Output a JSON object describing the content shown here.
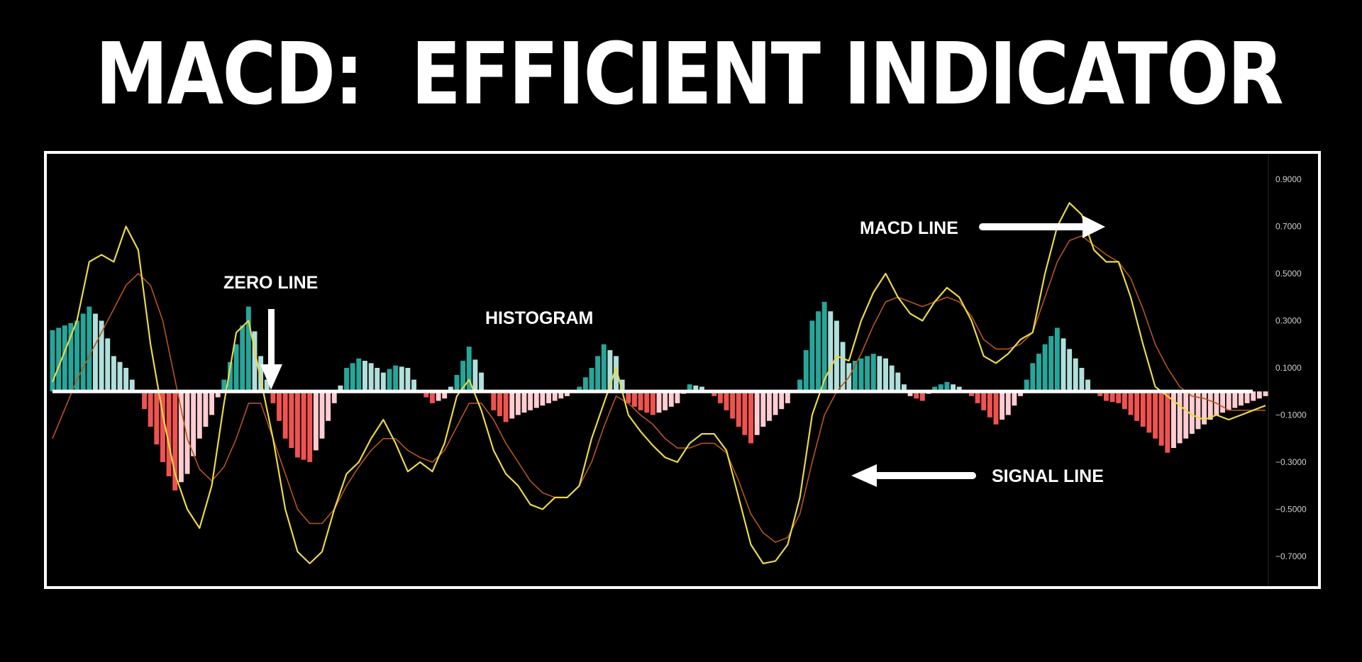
{
  "title": "MACD:  EFFICIENT INDICATOR",
  "annotations": {
    "zero_line": "ZERO LINE",
    "histogram": "HISTOGRAM",
    "macd_line": "MACD LINE",
    "signal_line": "SIGNAL LINE"
  },
  "colors": {
    "background": "#000000",
    "frame": "#ffffff",
    "macd_line": "#e8d84a",
    "signal_line": "#b4561e",
    "hist_pos_strong": "#26a69a",
    "hist_pos_weak": "#b2dfdb",
    "hist_neg_strong": "#ef5350",
    "hist_neg_weak": "#ffcdd2",
    "zero_line": "#ffffff"
  },
  "chart_data": {
    "type": "line",
    "ylim": [
      -0.78,
      0.95
    ],
    "y_ticks": [
      "0.9000",
      "0.7000",
      "0.5000",
      "0.3000",
      "0.1000",
      "−0.1000",
      "−0.3000",
      "−0.5000",
      "−0.7000"
    ],
    "y_tick_values": [
      0.9,
      0.7,
      0.5,
      0.3,
      0.1,
      -0.1,
      -0.3,
      -0.5,
      -0.7
    ],
    "zero_value": 0.0,
    "x_count": 100,
    "macd_anchors": [
      [
        0,
        0.04
      ],
      [
        2,
        0.3
      ],
      [
        3,
        0.55
      ],
      [
        4,
        0.58
      ],
      [
        5,
        0.55
      ],
      [
        6,
        0.7
      ],
      [
        7,
        0.6
      ],
      [
        8,
        0.2
      ],
      [
        9,
        -0.1
      ],
      [
        10,
        -0.35
      ],
      [
        11,
        -0.5
      ],
      [
        12,
        -0.58
      ],
      [
        13,
        -0.4
      ],
      [
        14,
        -0.05
      ],
      [
        15,
        0.25
      ],
      [
        16,
        0.3
      ],
      [
        17,
        0.05
      ],
      [
        18,
        -0.2
      ],
      [
        19,
        -0.5
      ],
      [
        20,
        -0.68
      ],
      [
        21,
        -0.73
      ],
      [
        22,
        -0.68
      ],
      [
        23,
        -0.5
      ],
      [
        24,
        -0.35
      ],
      [
        25,
        -0.3
      ],
      [
        26,
        -0.2
      ],
      [
        27,
        -0.12
      ],
      [
        28,
        -0.22
      ],
      [
        29,
        -0.34
      ],
      [
        30,
        -0.3
      ],
      [
        31,
        -0.34
      ],
      [
        32,
        -0.22
      ],
      [
        33,
        -0.02
      ],
      [
        34,
        0.05
      ],
      [
        35,
        -0.08
      ],
      [
        36,
        -0.25
      ],
      [
        37,
        -0.35
      ],
      [
        38,
        -0.4
      ],
      [
        39,
        -0.48
      ],
      [
        40,
        -0.5
      ],
      [
        41,
        -0.45
      ],
      [
        42,
        -0.45
      ],
      [
        43,
        -0.4
      ],
      [
        44,
        -0.2
      ],
      [
        45,
        -0.05
      ],
      [
        46,
        0.1
      ],
      [
        47,
        -0.1
      ],
      [
        48,
        -0.17
      ],
      [
        49,
        -0.23
      ],
      [
        50,
        -0.28
      ],
      [
        51,
        -0.3
      ],
      [
        52,
        -0.22
      ],
      [
        53,
        -0.18
      ],
      [
        54,
        -0.18
      ],
      [
        55,
        -0.25
      ],
      [
        56,
        -0.45
      ],
      [
        57,
        -0.65
      ],
      [
        58,
        -0.73
      ],
      [
        59,
        -0.72
      ],
      [
        60,
        -0.65
      ],
      [
        61,
        -0.45
      ],
      [
        62,
        -0.1
      ],
      [
        63,
        0.05
      ],
      [
        64,
        0.15
      ],
      [
        65,
        0.13
      ],
      [
        66,
        0.3
      ],
      [
        67,
        0.42
      ],
      [
        68,
        0.5
      ],
      [
        69,
        0.4
      ],
      [
        70,
        0.33
      ],
      [
        71,
        0.3
      ],
      [
        72,
        0.38
      ],
      [
        73,
        0.44
      ],
      [
        74,
        0.4
      ],
      [
        75,
        0.3
      ],
      [
        76,
        0.15
      ],
      [
        77,
        0.12
      ],
      [
        78,
        0.16
      ],
      [
        79,
        0.22
      ],
      [
        80,
        0.25
      ],
      [
        81,
        0.5
      ],
      [
        82,
        0.7
      ],
      [
        83,
        0.8
      ],
      [
        84,
        0.75
      ],
      [
        85,
        0.6
      ],
      [
        86,
        0.55
      ],
      [
        87,
        0.55
      ],
      [
        88,
        0.4
      ],
      [
        89,
        0.2
      ],
      [
        90,
        0.02
      ],
      [
        91,
        -0.02
      ],
      [
        92,
        -0.06
      ],
      [
        93,
        -0.1
      ],
      [
        94,
        -0.12
      ],
      [
        95,
        -0.1
      ],
      [
        96,
        -0.12
      ],
      [
        97,
        -0.1
      ],
      [
        98,
        -0.08
      ],
      [
        99,
        -0.06
      ]
    ],
    "signal_anchors": [
      [
        0,
        -0.2
      ],
      [
        2,
        0.05
      ],
      [
        4,
        0.25
      ],
      [
        6,
        0.45
      ],
      [
        7,
        0.5
      ],
      [
        8,
        0.45
      ],
      [
        9,
        0.3
      ],
      [
        10,
        0.05
      ],
      [
        11,
        -0.2
      ],
      [
        12,
        -0.33
      ],
      [
        13,
        -0.38
      ],
      [
        14,
        -0.32
      ],
      [
        15,
        -0.2
      ],
      [
        16,
        -0.05
      ],
      [
        17,
        -0.05
      ],
      [
        18,
        -0.2
      ],
      [
        19,
        -0.35
      ],
      [
        20,
        -0.5
      ],
      [
        21,
        -0.56
      ],
      [
        22,
        -0.56
      ],
      [
        23,
        -0.5
      ],
      [
        24,
        -0.4
      ],
      [
        25,
        -0.32
      ],
      [
        26,
        -0.25
      ],
      [
        27,
        -0.2
      ],
      [
        28,
        -0.2
      ],
      [
        29,
        -0.25
      ],
      [
        30,
        -0.28
      ],
      [
        31,
        -0.3
      ],
      [
        32,
        -0.25
      ],
      [
        33,
        -0.15
      ],
      [
        34,
        -0.05
      ],
      [
        35,
        -0.05
      ],
      [
        36,
        -0.12
      ],
      [
        37,
        -0.22
      ],
      [
        38,
        -0.3
      ],
      [
        39,
        -0.38
      ],
      [
        40,
        -0.43
      ],
      [
        41,
        -0.45
      ],
      [
        42,
        -0.45
      ],
      [
        43,
        -0.4
      ],
      [
        44,
        -0.3
      ],
      [
        45,
        -0.15
      ],
      [
        46,
        -0.02
      ],
      [
        47,
        -0.05
      ],
      [
        48,
        -0.1
      ],
      [
        49,
        -0.14
      ],
      [
        50,
        -0.2
      ],
      [
        51,
        -0.24
      ],
      [
        52,
        -0.24
      ],
      [
        53,
        -0.22
      ],
      [
        54,
        -0.22
      ],
      [
        55,
        -0.26
      ],
      [
        56,
        -0.38
      ],
      [
        57,
        -0.52
      ],
      [
        58,
        -0.6
      ],
      [
        59,
        -0.64
      ],
      [
        60,
        -0.62
      ],
      [
        61,
        -0.52
      ],
      [
        62,
        -0.3
      ],
      [
        63,
        -0.1
      ],
      [
        64,
        0.0
      ],
      [
        65,
        0.06
      ],
      [
        66,
        0.16
      ],
      [
        67,
        0.28
      ],
      [
        68,
        0.38
      ],
      [
        69,
        0.4
      ],
      [
        70,
        0.38
      ],
      [
        71,
        0.36
      ],
      [
        72,
        0.38
      ],
      [
        73,
        0.4
      ],
      [
        74,
        0.38
      ],
      [
        75,
        0.32
      ],
      [
        76,
        0.22
      ],
      [
        77,
        0.18
      ],
      [
        78,
        0.18
      ],
      [
        79,
        0.2
      ],
      [
        80,
        0.25
      ],
      [
        81,
        0.4
      ],
      [
        82,
        0.55
      ],
      [
        83,
        0.64
      ],
      [
        84,
        0.66
      ],
      [
        85,
        0.62
      ],
      [
        86,
        0.58
      ],
      [
        87,
        0.55
      ],
      [
        88,
        0.48
      ],
      [
        89,
        0.35
      ],
      [
        90,
        0.2
      ],
      [
        91,
        0.1
      ],
      [
        92,
        0.02
      ],
      [
        93,
        -0.02
      ],
      [
        94,
        -0.03
      ],
      [
        95,
        -0.05
      ],
      [
        96,
        -0.08
      ],
      [
        97,
        -0.08
      ],
      [
        98,
        -0.08
      ],
      [
        99,
        -0.08
      ]
    ],
    "histogram_anchors": [
      [
        0,
        0.26
      ],
      [
        2,
        0.3
      ],
      [
        3,
        0.36
      ],
      [
        4,
        0.3
      ],
      [
        5,
        0.15
      ],
      [
        6,
        0.1
      ],
      [
        7,
        0.0
      ],
      [
        8,
        -0.15
      ],
      [
        9,
        -0.3
      ],
      [
        10,
        -0.42
      ],
      [
        11,
        -0.35
      ],
      [
        12,
        -0.2
      ],
      [
        13,
        -0.1
      ],
      [
        14,
        0.05
      ],
      [
        15,
        0.2
      ],
      [
        16,
        0.36
      ],
      [
        17,
        0.15
      ],
      [
        18,
        -0.05
      ],
      [
        19,
        -0.2
      ],
      [
        20,
        -0.28
      ],
      [
        21,
        -0.3
      ],
      [
        22,
        -0.2
      ],
      [
        23,
        -0.05
      ],
      [
        24,
        0.1
      ],
      [
        25,
        0.14
      ],
      [
        26,
        0.12
      ],
      [
        27,
        0.08
      ],
      [
        28,
        0.11
      ],
      [
        29,
        0.1
      ],
      [
        30,
        0.0
      ],
      [
        31,
        -0.05
      ],
      [
        32,
        -0.03
      ],
      [
        33,
        0.07
      ],
      [
        34,
        0.19
      ],
      [
        35,
        0.08
      ],
      [
        36,
        -0.08
      ],
      [
        37,
        -0.13
      ],
      [
        38,
        -0.1
      ],
      [
        39,
        -0.08
      ],
      [
        40,
        -0.06
      ],
      [
        41,
        -0.04
      ],
      [
        42,
        -0.02
      ],
      [
        43,
        0.02
      ],
      [
        44,
        0.1
      ],
      [
        45,
        0.2
      ],
      [
        46,
        0.15
      ],
      [
        47,
        -0.05
      ],
      [
        48,
        -0.08
      ],
      [
        49,
        -0.1
      ],
      [
        50,
        -0.08
      ],
      [
        51,
        -0.05
      ],
      [
        52,
        0.03
      ],
      [
        53,
        0.02
      ],
      [
        54,
        -0.02
      ],
      [
        55,
        -0.08
      ],
      [
        56,
        -0.15
      ],
      [
        57,
        -0.22
      ],
      [
        58,
        -0.15
      ],
      [
        59,
        -0.1
      ],
      [
        60,
        -0.05
      ],
      [
        61,
        0.05
      ],
      [
        62,
        0.3
      ],
      [
        63,
        0.38
      ],
      [
        64,
        0.3
      ],
      [
        65,
        0.12
      ],
      [
        66,
        0.14
      ],
      [
        67,
        0.16
      ],
      [
        68,
        0.14
      ],
      [
        69,
        0.08
      ],
      [
        70,
        -0.02
      ],
      [
        71,
        -0.04
      ],
      [
        72,
        0.02
      ],
      [
        73,
        0.04
      ],
      [
        74,
        0.02
      ],
      [
        75,
        -0.02
      ],
      [
        76,
        -0.08
      ],
      [
        77,
        -0.14
      ],
      [
        78,
        -0.1
      ],
      [
        79,
        -0.02
      ],
      [
        80,
        0.12
      ],
      [
        81,
        0.2
      ],
      [
        82,
        0.27
      ],
      [
        83,
        0.18
      ],
      [
        84,
        0.1
      ],
      [
        85,
        0.0
      ],
      [
        86,
        -0.04
      ],
      [
        87,
        -0.05
      ],
      [
        88,
        -0.1
      ],
      [
        89,
        -0.15
      ],
      [
        90,
        -0.2
      ],
      [
        91,
        -0.26
      ],
      [
        92,
        -0.22
      ],
      [
        93,
        -0.18
      ],
      [
        94,
        -0.14
      ],
      [
        95,
        -0.1
      ],
      [
        96,
        -0.08
      ],
      [
        97,
        -0.06
      ],
      [
        98,
        -0.04
      ],
      [
        99,
        -0.02
      ]
    ]
  }
}
